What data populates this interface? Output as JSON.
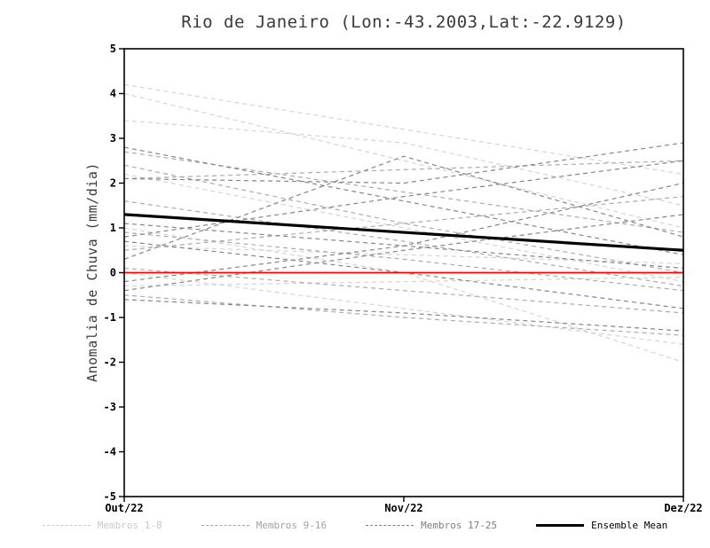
{
  "chart_data": {
    "type": "line",
    "title": "Rio de Janeiro (Lon:-43.2003,Lat:-22.9129)",
    "xlabel": "",
    "ylabel": "Anomalia de Chuva (mm/dia)",
    "x_ticks": [
      "Out/22",
      "Nov/22",
      "Dez/22"
    ],
    "ylim": [
      -5,
      5
    ],
    "y_tick_step": 1,
    "grid": false,
    "legend_position": "bottom",
    "reference_line": {
      "y": 0,
      "color": "#ff0000"
    },
    "group_colors": {
      "membros_1_8": "#d4d4d4",
      "membros_9_16": "#acacac",
      "membros_17_25": "#868686"
    },
    "ensemble_mean": {
      "name": "Ensemble Mean",
      "color": "#000000",
      "values": [
        1.3,
        0.9,
        0.5
      ]
    },
    "series": [
      {
        "name": "Membro 1",
        "group": "membros_1_8",
        "values": [
          4.2,
          3.2,
          2.2
        ]
      },
      {
        "name": "Membro 2",
        "group": "membros_1_8",
        "values": [
          4.0,
          2.5,
          1.0
        ]
      },
      {
        "name": "Membro 3",
        "group": "membros_1_8",
        "values": [
          3.4,
          2.9,
          1.5
        ]
      },
      {
        "name": "Membro 4",
        "group": "membros_1_8",
        "values": [
          2.2,
          1.0,
          -0.2
        ]
      },
      {
        "name": "Membro 5",
        "group": "membros_1_8",
        "values": [
          1.0,
          0.0,
          -2.0
        ]
      },
      {
        "name": "Membro 6",
        "group": "membros_1_8",
        "values": [
          0.6,
          0.4,
          0.2
        ]
      },
      {
        "name": "Membro 7",
        "group": "membros_1_8",
        "values": [
          0.0,
          -0.8,
          -1.6
        ]
      },
      {
        "name": "Membro 8",
        "group": "membros_1_8",
        "values": [
          -0.3,
          -0.2,
          -0.1
        ]
      },
      {
        "name": "Membro 9",
        "group": "membros_9_16",
        "values": [
          2.7,
          1.8,
          0.9
        ]
      },
      {
        "name": "Membro 10",
        "group": "membros_9_16",
        "values": [
          2.1,
          2.3,
          2.5
        ]
      },
      {
        "name": "Membro 11",
        "group": "membros_9_16",
        "values": [
          1.6,
          0.7,
          -0.3
        ]
      },
      {
        "name": "Membro 12",
        "group": "membros_9_16",
        "values": [
          0.9,
          0.3,
          -0.4
        ]
      },
      {
        "name": "Membro 13",
        "group": "membros_9_16",
        "values": [
          0.5,
          1.1,
          1.7
        ]
      },
      {
        "name": "Membro 14",
        "group": "membros_9_16",
        "values": [
          0.1,
          -0.4,
          -0.9
        ]
      },
      {
        "name": "Membro 15",
        "group": "membros_9_16",
        "values": [
          -0.5,
          -1.0,
          -1.4
        ]
      },
      {
        "name": "Membro 16",
        "group": "membros_9_16",
        "values": [
          2.4,
          1.1,
          0.0
        ]
      },
      {
        "name": "Membro 17",
        "group": "membros_17_25",
        "values": [
          2.8,
          1.6,
          0.4
        ]
      },
      {
        "name": "Membro 18",
        "group": "membros_17_25",
        "values": [
          2.1,
          2.0,
          2.9
        ]
      },
      {
        "name": "Membro 19",
        "group": "membros_17_25",
        "values": [
          1.1,
          0.6,
          0.1
        ]
      },
      {
        "name": "Membro 20",
        "group": "membros_17_25",
        "values": [
          0.8,
          1.7,
          2.5
        ]
      },
      {
        "name": "Membro 21",
        "group": "membros_17_25",
        "values": [
          0.7,
          0.0,
          -0.8
        ]
      },
      {
        "name": "Membro 22",
        "group": "membros_17_25",
        "values": [
          0.3,
          2.6,
          0.8
        ]
      },
      {
        "name": "Membro 23",
        "group": "membros_17_25",
        "values": [
          -0.6,
          -0.9,
          -1.3
        ]
      },
      {
        "name": "Membro 24",
        "group": "membros_17_25",
        "values": [
          -0.2,
          0.6,
          2.0
        ]
      },
      {
        "name": "Membro 25",
        "group": "membros_17_25",
        "values": [
          -0.4,
          0.5,
          1.3
        ]
      }
    ],
    "legend": {
      "items": [
        {
          "label": "Membros 1-8",
          "color": "#c9c9c9",
          "style": "dashed"
        },
        {
          "label": "Membros 9-16",
          "color": "#a2a2a2",
          "style": "dashed"
        },
        {
          "label": "Membros 17-25",
          "color": "#7e7e7e",
          "style": "dashed"
        },
        {
          "label": "Ensemble Mean",
          "color": "#000000",
          "style": "solid"
        }
      ]
    }
  }
}
